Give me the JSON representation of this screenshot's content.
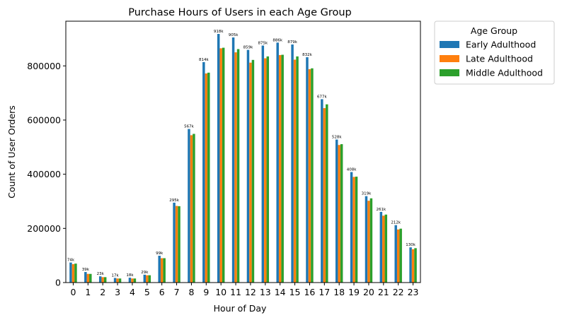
{
  "chart_data": {
    "type": "bar",
    "title": "Purchase Hours of Users in each Age Group",
    "xlabel": "Hour of Day",
    "ylabel": "Count of User Orders",
    "ylim": [
      0,
      965000
    ],
    "yticks": [
      0,
      200000,
      400000,
      600000,
      800000
    ],
    "ytick_labels": [
      "0",
      "200000",
      "400000",
      "600000",
      "800000"
    ],
    "categories": [
      "0",
      "1",
      "2",
      "3",
      "4",
      "5",
      "6",
      "7",
      "8",
      "9",
      "10",
      "11",
      "12",
      "13",
      "14",
      "15",
      "16",
      "17",
      "18",
      "19",
      "20",
      "21",
      "22",
      "23"
    ],
    "legend_title": "Age Group",
    "legend_position": "outside-top-right",
    "grid": false,
    "series": [
      {
        "name": "Early Adulthood",
        "color": "#1f77b4",
        "values": [
          74000,
          39000,
          23000,
          17000,
          18000,
          29000,
          99000,
          295000,
          567000,
          814000,
          918000,
          905000,
          859000,
          875000,
          886000,
          879000,
          832000,
          677000,
          528000,
          408000,
          319000,
          261000,
          212000,
          130000
        ],
        "data_labels": [
          "74k",
          "39k",
          "23k",
          "17k",
          "18k",
          "29k",
          "99k",
          "295k",
          "567k",
          "814k",
          "918k",
          "905k",
          "859k",
          "875k",
          "886k",
          "879k",
          "832k",
          "677k",
          "528k",
          "408k",
          "319k",
          "261k",
          "212k",
          "130k"
        ]
      },
      {
        "name": "Late Adulthood",
        "color": "#ff7f0e",
        "values": [
          68000,
          32000,
          20000,
          15000,
          15000,
          27000,
          90000,
          283000,
          544000,
          772000,
          865000,
          850000,
          812000,
          828000,
          840000,
          823000,
          788000,
          644000,
          508000,
          390000,
          302000,
          247000,
          196000,
          123000
        ]
      },
      {
        "name": "Middle Adulthood",
        "color": "#2ca02c",
        "values": [
          70000,
          32000,
          20000,
          15000,
          15000,
          27000,
          90000,
          282000,
          549000,
          775000,
          867000,
          862000,
          822000,
          835000,
          841000,
          835000,
          791000,
          658000,
          511000,
          391000,
          311000,
          251000,
          199000,
          127000
        ]
      }
    ]
  }
}
